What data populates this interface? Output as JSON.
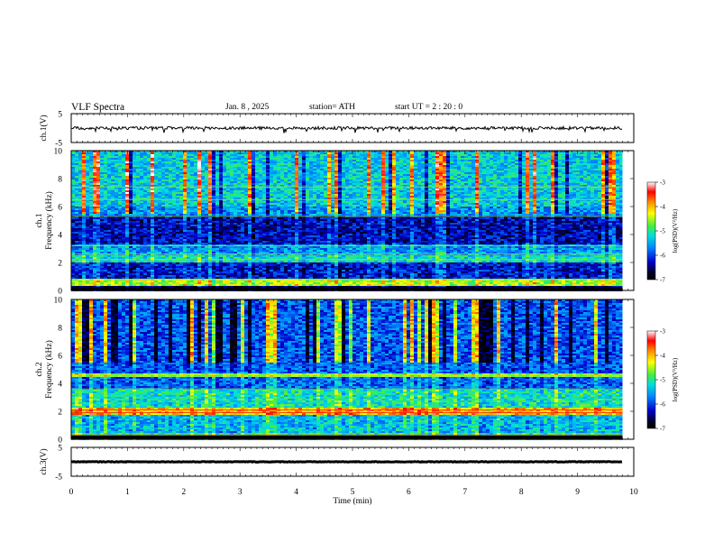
{
  "header": {
    "title": "VLF  Spectra",
    "date": "Jan. 8  , 2025",
    "station": "station= ATH",
    "start": "start  UT  =   2  : 20 : 0"
  },
  "chart_data": [
    {
      "type": "line",
      "panel": "ch1-waveform",
      "ylabel": "ch.1(V)",
      "ylim": [
        -5,
        5
      ],
      "yticks": [
        "5",
        "-5"
      ],
      "xlim": [
        0,
        10
      ],
      "note_series": "noisy waveform centered near 0 V with spikes down to about -1.5 V",
      "series": [
        {
          "x_range": [
            0,
            9.8
          ],
          "baseline": 0,
          "amplitude": 0.5
        }
      ]
    },
    {
      "type": "heatmap",
      "panel": "ch1-spectrogram",
      "ylabel": "ch.1\nFrequency (kHz)",
      "ylim": [
        0,
        10
      ],
      "yticks": [
        "0",
        "2",
        "4",
        "6",
        "8",
        "10"
      ],
      "xlim": [
        0,
        10
      ],
      "data_x_range": [
        0,
        9.8
      ],
      "colorbar": {
        "label": "log(PSD)(V²/Hz)",
        "range": [
          -7,
          -3
        ],
        "ticks": [
          "-3",
          "-4",
          "-5",
          "-6",
          "-7"
        ],
        "colors": [
          "#000000",
          "#0000cc",
          "#0088ff",
          "#00dddd",
          "#44ee44",
          "#ffff00",
          "#ff8800",
          "#ff0000",
          "#ffffff"
        ]
      },
      "bands_khz": [
        {
          "from": 0.0,
          "to": 0.3,
          "level": -6.5
        },
        {
          "from": 0.3,
          "to": 0.9,
          "level": -4.5
        },
        {
          "from": 0.9,
          "to": 2.0,
          "level": -6.2
        },
        {
          "from": 2.0,
          "to": 2.5,
          "level": -5.2
        },
        {
          "from": 2.5,
          "to": 3.3,
          "level": -5.6
        },
        {
          "from": 3.3,
          "to": 5.3,
          "level": -6.3
        },
        {
          "from": 5.3,
          "to": 6.0,
          "level": -5.6
        },
        {
          "from": 6.0,
          "to": 10.0,
          "level": -5.3
        }
      ]
    },
    {
      "type": "heatmap",
      "panel": "ch2-spectrogram",
      "ylabel": "ch.2\nFrequency (kHz)",
      "ylim": [
        0,
        10
      ],
      "yticks": [
        "0",
        "2",
        "4",
        "6",
        "8",
        "10"
      ],
      "xlim": [
        0,
        10
      ],
      "data_x_range": [
        0,
        9.8
      ],
      "colorbar": {
        "label": "log(PSD)(V²/Hz)",
        "range": [
          -7,
          -3
        ],
        "ticks": [
          "-3",
          "-4",
          "-5",
          "-6",
          "-7"
        ]
      },
      "bands_khz": [
        {
          "from": 0.0,
          "to": 0.4,
          "level": -5.0
        },
        {
          "from": 0.4,
          "to": 1.8,
          "level": -5.4
        },
        {
          "from": 1.8,
          "to": 2.3,
          "level": -4.0
        },
        {
          "from": 2.3,
          "to": 3.6,
          "level": -5.1
        },
        {
          "from": 3.6,
          "to": 4.5,
          "level": -5.8
        },
        {
          "from": 4.5,
          "to": 4.7,
          "level": -4.5
        },
        {
          "from": 4.7,
          "to": 10.0,
          "level": -5.9
        }
      ]
    },
    {
      "type": "line",
      "panel": "ch3-waveform",
      "ylabel": "ch.3(V)",
      "ylim": [
        -5,
        5
      ],
      "yticks": [
        "5",
        "-5"
      ],
      "xlim": [
        0,
        10
      ],
      "series": [
        {
          "x_range": [
            0,
            9.8
          ],
          "baseline": 0,
          "amplitude": 0.1
        }
      ]
    }
  ],
  "x_axis": {
    "label": "Time  (min)",
    "ticks": [
      "0",
      "1",
      "2",
      "3",
      "4",
      "5",
      "6",
      "7",
      "8",
      "9",
      "10"
    ]
  }
}
